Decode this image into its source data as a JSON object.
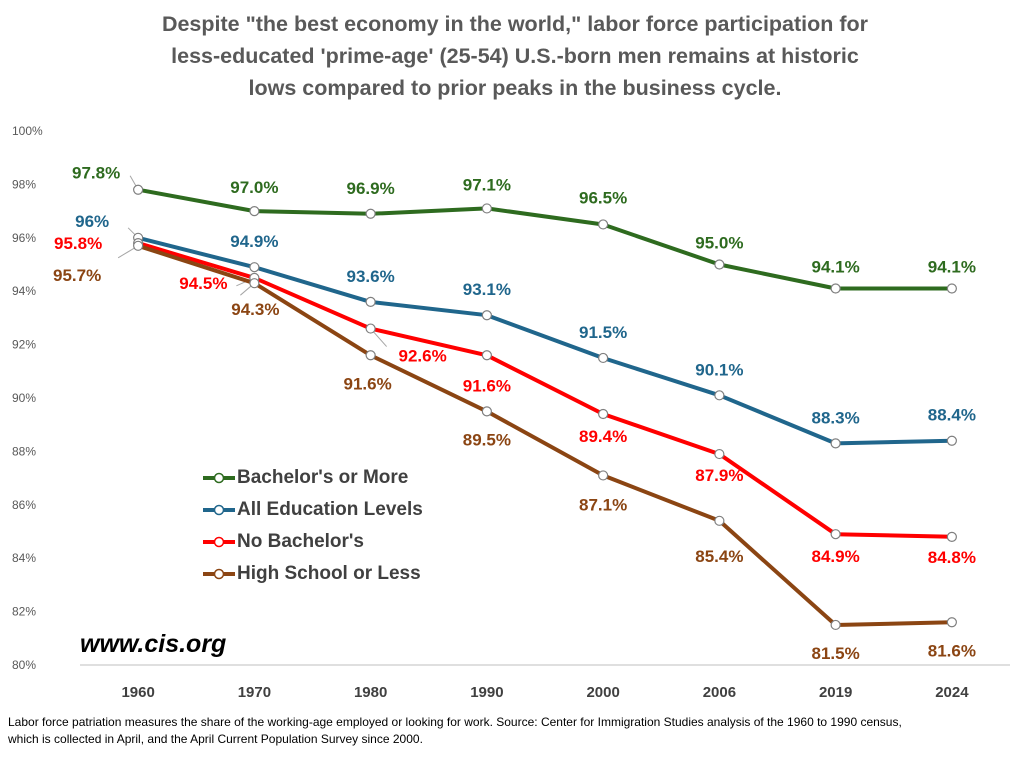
{
  "page": {
    "title_lines": [
      "Despite \"the best economy in the world,\" labor force participation for",
      "less-educated 'prime-age' (25-54) U.S.-born men remains at historic",
      "lows compared to prior peaks in the business cycle."
    ],
    "watermark": "www.cis.org",
    "footnote_lines": [
      "Labor force patriation measures the share of the working-age employed or looking for work. Source: Center for Immigration Studies analysis of the 1960 to 1990 census,",
      "which is collected in April, and the April Current Population Survey since 2000."
    ]
  },
  "chart_data": {
    "type": "line",
    "title": "Despite \"the best economy in the world,\" labor force participation for less-educated 'prime-age' (25-54) U.S.-born men remains at historic lows compared to prior peaks in the business cycle.",
    "categories": [
      "1960",
      "1970",
      "1980",
      "1990",
      "2000",
      "2006",
      "2019",
      "2024"
    ],
    "ylim": [
      80,
      100
    ],
    "yticks": [
      80,
      82,
      84,
      86,
      88,
      90,
      92,
      94,
      96,
      98,
      100
    ],
    "ytick_labels": [
      "80%",
      "82%",
      "84%",
      "86%",
      "88%",
      "90%",
      "92%",
      "94%",
      "96%",
      "98%",
      "100%"
    ],
    "grid": false,
    "legend_position": "lower-left",
    "series": [
      {
        "name": "Bachelor's or More",
        "color": "#2e6b1f",
        "values": [
          97.8,
          97.0,
          96.9,
          97.1,
          96.5,
          95.0,
          94.1,
          94.1
        ],
        "labels": [
          "97.8%",
          "97.0%",
          "96.9%",
          "97.1%",
          "96.5%",
          "95.0%",
          "94.1%",
          "94.1%"
        ]
      },
      {
        "name": "All Education Levels",
        "color": "#20668c",
        "values": [
          96.0,
          94.9,
          93.6,
          93.1,
          91.5,
          90.1,
          88.3,
          88.4
        ],
        "labels": [
          "96%",
          "94.9%",
          "93.6%",
          "93.1%",
          "91.5%",
          "90.1%",
          "88.3%",
          "88.4%"
        ]
      },
      {
        "name": "No Bachelor's",
        "color": "#ff0000",
        "values": [
          95.8,
          94.5,
          92.6,
          91.6,
          89.4,
          87.9,
          84.9,
          84.8
        ],
        "labels": [
          "95.8%",
          "94.5%",
          "92.6%",
          "91.6%",
          "89.4%",
          "87.9%",
          "84.9%",
          "84.8%"
        ]
      },
      {
        "name": "High School or Less",
        "color": "#8b4513",
        "values": [
          95.7,
          94.3,
          91.6,
          89.5,
          87.1,
          85.4,
          81.5,
          81.6
        ],
        "labels": [
          "95.7%",
          "94.3%",
          "91.6%",
          "89.5%",
          "87.1%",
          "85.4%",
          "81.5%",
          "81.6%"
        ]
      }
    ]
  }
}
